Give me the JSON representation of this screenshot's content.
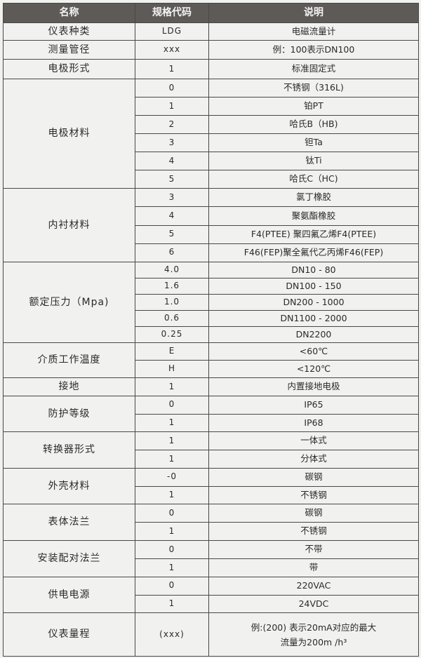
{
  "header": {
    "name": "名称",
    "code": "规格代码",
    "desc": "说明"
  },
  "groups": [
    {
      "name": "仪表种类",
      "items": [
        {
          "code": "LDG",
          "desc": "电磁流量计"
        }
      ]
    },
    {
      "name": "测量管径",
      "items": [
        {
          "code": "xxx",
          "desc": "例：100表示DN100"
        }
      ]
    },
    {
      "name": "电极形式",
      "items": [
        {
          "code": "1",
          "desc": "标准固定式"
        }
      ]
    },
    {
      "name": "电极材料",
      "items": [
        {
          "code": "0",
          "desc": "不锈钢（316L)"
        },
        {
          "code": "1",
          "desc": "铂PT"
        },
        {
          "code": "2",
          "desc": "哈氏B（HB)"
        },
        {
          "code": "3",
          "desc": "钽Ta"
        },
        {
          "code": "4",
          "desc": "钛Ti"
        },
        {
          "code": "5",
          "desc": "哈氏C（HC)"
        }
      ]
    },
    {
      "name": "内衬材料",
      "items": [
        {
          "code": "3",
          "desc": "氯丁橡胶"
        },
        {
          "code": "4",
          "desc": "聚氨酯橡胶"
        },
        {
          "code": "5",
          "desc": "F4(PTEE) 聚四氟乙烯F4(PTEE)"
        },
        {
          "code": "6",
          "desc": "F46(FEP)聚全氟代乙丙烯F46(FEP)"
        }
      ]
    },
    {
      "name": "额定压力（Mpa)",
      "items": [
        {
          "code": "4.0",
          "desc": "DN10 - 80"
        },
        {
          "code": "1.6",
          "desc": "DN100 - 150"
        },
        {
          "code": "1.0",
          "desc": "DN200 - 1000"
        },
        {
          "code": "0.6",
          "desc": "DN1100 - 2000"
        },
        {
          "code": "0.25",
          "desc": "DN2200"
        }
      ]
    },
    {
      "name": "介质工作温度",
      "items": [
        {
          "code": "E",
          "desc": "<60℃"
        },
        {
          "code": "H",
          "desc": "<120℃"
        }
      ]
    },
    {
      "name": "接地",
      "items": [
        {
          "code": "1",
          "desc": "内置接地电极"
        }
      ]
    },
    {
      "name": "防护等级",
      "items": [
        {
          "code": "0",
          "desc": "IP65"
        },
        {
          "code": "1",
          "desc": "IP68"
        }
      ]
    },
    {
      "name": "转换器形式",
      "items": [
        {
          "code": "1",
          "desc": "一体式"
        },
        {
          "code": "1",
          "desc": "分体式"
        }
      ]
    },
    {
      "name": "外壳材料",
      "items": [
        {
          "code": "-0",
          "desc": "碳钢"
        },
        {
          "code": "1",
          "desc": "不锈钢"
        }
      ]
    },
    {
      "name": "表体法兰",
      "items": [
        {
          "code": "0",
          "desc": "碳钢"
        },
        {
          "code": "1",
          "desc": "不锈钢"
        }
      ]
    },
    {
      "name": "安装配对法兰",
      "items": [
        {
          "code": "0",
          "desc": "不带"
        },
        {
          "code": "1",
          "desc": "带"
        }
      ]
    },
    {
      "name": "供电电源",
      "items": [
        {
          "code": "0",
          "desc": "220VAC"
        },
        {
          "code": "1",
          "desc": "24VDC"
        }
      ]
    },
    {
      "name": "仪表量程",
      "items": [
        {
          "code": "(xxx)",
          "desc": [
            "例:(200) 表示20mA对应的最大",
            "流量为200m /h³"
          ]
        }
      ]
    }
  ]
}
